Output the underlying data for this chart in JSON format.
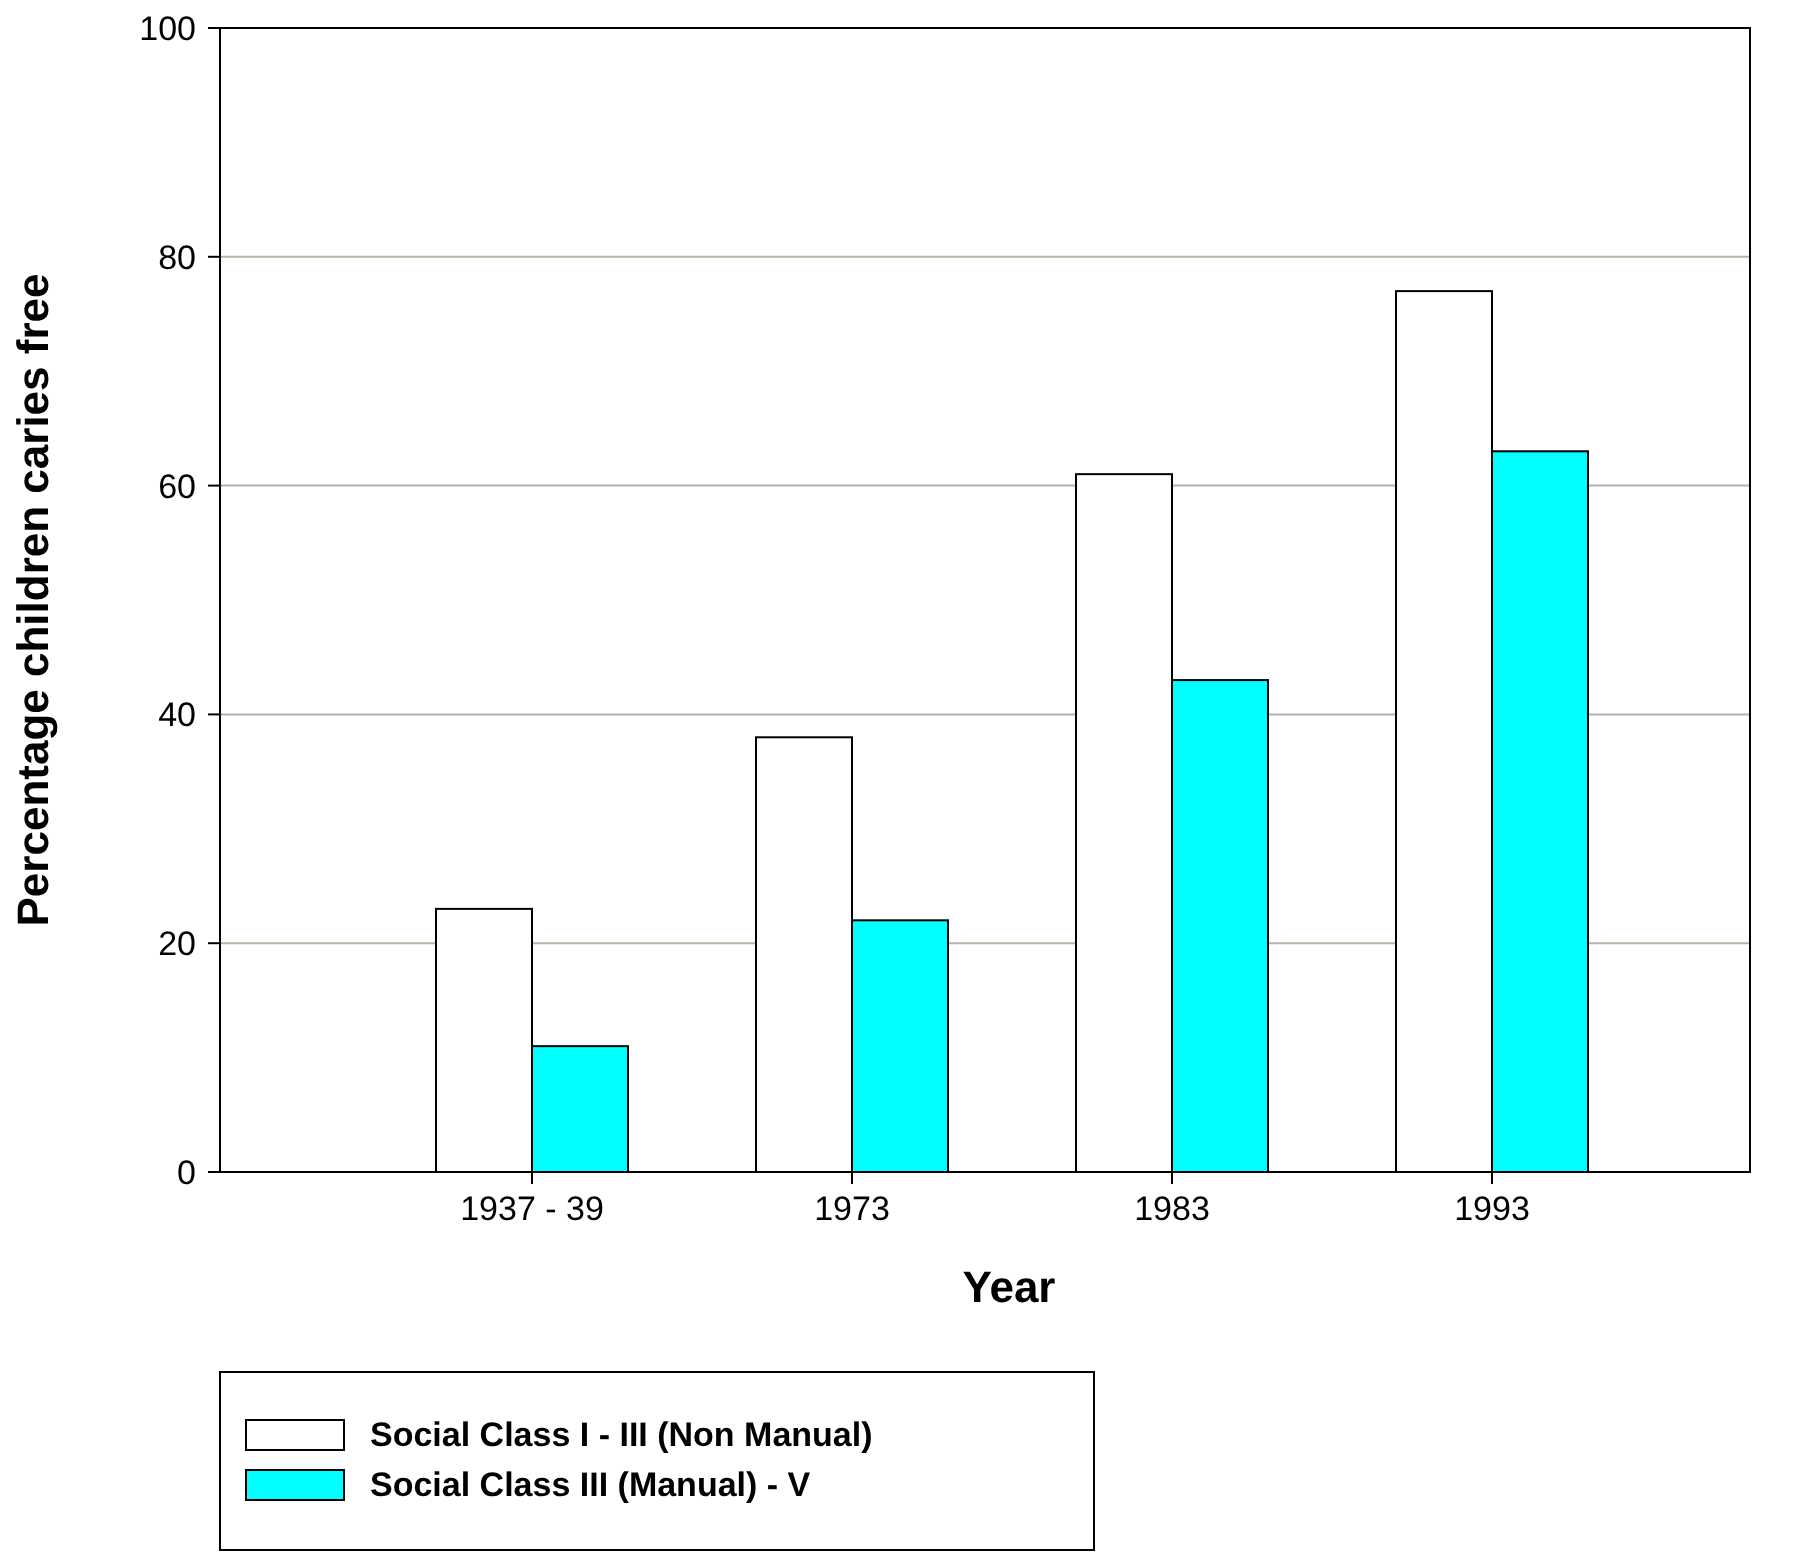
{
  "chart_data": {
    "type": "bar",
    "xlabel": "Year",
    "ylabel": "Percentage children caries free",
    "categories": [
      "1937 - 39",
      "1973",
      "1983",
      "1993"
    ],
    "series": [
      {
        "name": "Social Class I - III (Non Manual)",
        "color": "#ffffff",
        "values": [
          23,
          38,
          61,
          77
        ]
      },
      {
        "name": "Social Class III (Manual) - V",
        "color": "#00ffff",
        "values": [
          11,
          22,
          43,
          63
        ]
      }
    ],
    "ylim": [
      0,
      100
    ],
    "yticks": [
      0,
      20,
      40,
      60,
      80,
      100
    ],
    "grid": "y",
    "legend": "bottom"
  }
}
